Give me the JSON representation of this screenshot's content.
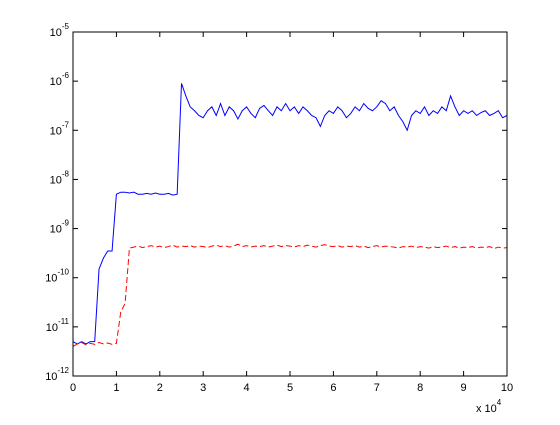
{
  "chart_data": {
    "type": "line",
    "yscale": "log",
    "xlim": [
      0,
      100000
    ],
    "ylim": [
      1e-12,
      1e-05
    ],
    "xticks": [
      {
        "value": 0,
        "label": "0"
      },
      {
        "value": 10000,
        "label": "1"
      },
      {
        "value": 20000,
        "label": "2"
      },
      {
        "value": 30000,
        "label": "3"
      },
      {
        "value": 40000,
        "label": "4"
      },
      {
        "value": 50000,
        "label": "5"
      },
      {
        "value": 60000,
        "label": "6"
      },
      {
        "value": 70000,
        "label": "7"
      },
      {
        "value": 80000,
        "label": "8"
      },
      {
        "value": 90000,
        "label": "9"
      },
      {
        "value": 100000,
        "label": "10"
      }
    ],
    "x_multiplier": {
      "label": "x 10",
      "exponent": "4"
    },
    "yticks": [
      {
        "value": 1e-12,
        "label": "10",
        "exponent": "-12"
      },
      {
        "value": 1e-11,
        "label": "10",
        "exponent": "-11"
      },
      {
        "value": 1e-10,
        "label": "10",
        "exponent": "-10"
      },
      {
        "value": 1e-09,
        "label": "10",
        "exponent": "-9"
      },
      {
        "value": 1e-08,
        "label": "10",
        "exponent": "-8"
      },
      {
        "value": 1e-07,
        "label": "10",
        "exponent": "-7"
      },
      {
        "value": 1e-06,
        "label": "10",
        "exponent": "-6"
      },
      {
        "value": 1e-05,
        "label": "10",
        "exponent": "-5"
      }
    ],
    "x": [
      0,
      1000,
      2000,
      3000,
      4000,
      5000,
      6000,
      7000,
      8000,
      9000,
      10000,
      11000,
      12000,
      13000,
      14000,
      15000,
      16000,
      17000,
      18000,
      19000,
      20000,
      21000,
      22000,
      23000,
      24000,
      25000,
      26000,
      27000,
      28000,
      29000,
      30000,
      31000,
      32000,
      33000,
      34000,
      35000,
      36000,
      37000,
      38000,
      39000,
      40000,
      41000,
      42000,
      43000,
      44000,
      45000,
      46000,
      47000,
      48000,
      49000,
      50000,
      51000,
      52000,
      53000,
      54000,
      55000,
      56000,
      57000,
      58000,
      59000,
      60000,
      61000,
      62000,
      63000,
      64000,
      65000,
      66000,
      67000,
      68000,
      69000,
      70000,
      71000,
      72000,
      73000,
      74000,
      75000,
      76000,
      77000,
      78000,
      79000,
      80000,
      81000,
      82000,
      83000,
      84000,
      85000,
      86000,
      87000,
      88000,
      89000,
      90000,
      91000,
      92000,
      93000,
      94000,
      95000,
      96000,
      97000,
      98000,
      99000,
      100000
    ],
    "series": [
      {
        "color": "#0000ff",
        "dash": "solid",
        "values": [
          5e-12,
          4.5e-12,
          5e-12,
          4.5e-12,
          5e-12,
          5e-12,
          1.5e-10,
          2.5e-10,
          3.5e-10,
          3.5e-10,
          5e-09,
          5.5e-09,
          5.5e-09,
          5.3e-09,
          5.5e-09,
          5e-09,
          5e-09,
          5.2e-09,
          5e-09,
          5.3e-09,
          5e-09,
          5e-09,
          5.2e-09,
          4.8e-09,
          5e-09,
          9e-07,
          5e-07,
          3e-07,
          2.5e-07,
          2e-07,
          1.8e-07,
          2.5e-07,
          3e-07,
          2e-07,
          3.5e-07,
          2e-07,
          3e-07,
          2.5e-07,
          1.7e-07,
          2.5e-07,
          3e-07,
          2.2e-07,
          1.8e-07,
          2.8e-07,
          3.2e-07,
          2.5e-07,
          2e-07,
          3e-07,
          2.5e-07,
          3.5e-07,
          2.5e-07,
          3e-07,
          2.2e-07,
          3e-07,
          2.5e-07,
          2e-07,
          1.8e-07,
          1.2e-07,
          2e-07,
          2.5e-07,
          2.2e-07,
          3e-07,
          2.5e-07,
          1.8e-07,
          2.2e-07,
          3e-07,
          2.5e-07,
          3.5e-07,
          2.8e-07,
          2.5e-07,
          3e-07,
          4e-07,
          3.5e-07,
          2.5e-07,
          3e-07,
          2e-07,
          1.5e-07,
          1e-07,
          2e-07,
          2.5e-07,
          2.2e-07,
          3e-07,
          2e-07,
          2.5e-07,
          2.2e-07,
          3e-07,
          2.5e-07,
          5e-07,
          3e-07,
          2e-07,
          2.5e-07,
          2.2e-07,
          2.5e-07,
          2e-07,
          2.3e-07,
          2.5e-07,
          2e-07,
          2.2e-07,
          2.5e-07,
          1.8e-07,
          2e-07
        ]
      },
      {
        "color": "#ff0000",
        "dash": "dashed",
        "values": [
          4e-12,
          4.5e-12,
          4.8e-12,
          4.3e-12,
          4.6e-12,
          4.4e-12,
          4.8e-12,
          4.5e-12,
          4.7e-12,
          4.4e-12,
          4.6e-12,
          2e-11,
          3e-11,
          4e-10,
          4.2e-10,
          4.4e-10,
          4.1e-10,
          4.3e-10,
          4.5e-10,
          4.2e-10,
          4.4e-10,
          4.1e-10,
          4.3e-10,
          4.6e-10,
          4.2e-10,
          4.4e-10,
          4.3e-10,
          4.5e-10,
          4.2e-10,
          4.4e-10,
          4.3e-10,
          4.1e-10,
          4.4e-10,
          4.6e-10,
          4.3e-10,
          4.5e-10,
          4.2e-10,
          4.4e-10,
          4.8e-10,
          4.3e-10,
          4.5e-10,
          4.2e-10,
          4.4e-10,
          4.3e-10,
          4.5e-10,
          4.2e-10,
          4.4e-10,
          4.6e-10,
          4.3e-10,
          4.5e-10,
          4.4e-10,
          4.2e-10,
          4.5e-10,
          4.3e-10,
          4.6e-10,
          4.4e-10,
          4.2e-10,
          4.5e-10,
          4.7e-10,
          4.4e-10,
          4.3e-10,
          4.5e-10,
          4.2e-10,
          4.4e-10,
          4.3e-10,
          4.5e-10,
          4.2e-10,
          4.4e-10,
          4.1e-10,
          4.3e-10,
          4.5e-10,
          4.2e-10,
          4.4e-10,
          4.3e-10,
          4.2e-10,
          4e-10,
          4.3e-10,
          4.2e-10,
          4.4e-10,
          4.1e-10,
          4.3e-10,
          4.2e-10,
          4e-10,
          4.3e-10,
          4.1e-10,
          4.2e-10,
          4.4e-10,
          4.1e-10,
          4.3e-10,
          4e-10,
          4.2e-10,
          4.1e-10,
          4.3e-10,
          4e-10,
          4.2e-10,
          4.1e-10,
          4.3e-10,
          3.9e-10,
          4.2e-10,
          4e-10,
          4.1e-10
        ]
      }
    ]
  }
}
